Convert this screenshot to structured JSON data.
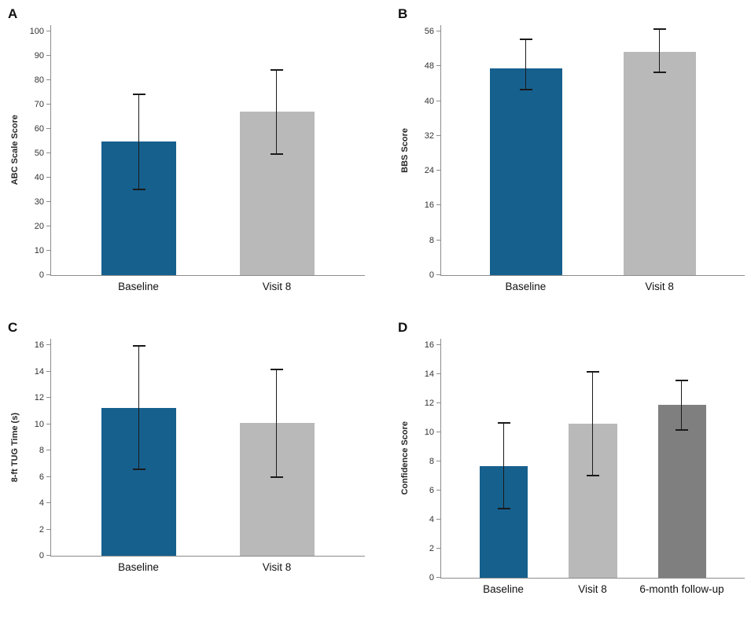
{
  "figure": {
    "description": "Four-panel bar chart figure with error bars comparing outcome measures at Baseline, Visit 8, and 6-month follow-up"
  },
  "colors": {
    "bar_blue": "#16608e",
    "bar_light_gray": "#b9b9b9",
    "bar_dark_gray": "#7f7f7f",
    "error_bar": "#1a1a1a",
    "axis_line": "#8c8c8c",
    "text": "#1a1a1a",
    "background": "#ffffff"
  },
  "chart_data": [
    {
      "type": "bar",
      "panel_label": "A",
      "categories": [
        "Baseline",
        "Visit 8"
      ],
      "values": [
        55,
        67
      ],
      "error_low": [
        35,
        49.5
      ],
      "error_high": [
        74.5,
        84.5
      ],
      "title": "",
      "xlabel": "",
      "ylabel": "ABC Scale Score",
      "ylim": [
        0,
        100
      ],
      "ytick_step": 10,
      "grid": false,
      "legend": false,
      "bar_colors": [
        "#16608e",
        "#b9b9b9"
      ]
    },
    {
      "type": "bar",
      "panel_label": "B",
      "categories": [
        "Baseline",
        "Visit 8"
      ],
      "values": [
        47.5,
        51.3
      ],
      "error_low": [
        42.4,
        46.4
      ],
      "error_high": [
        54.4,
        56.8
      ],
      "title": "",
      "xlabel": "",
      "ylabel": "BBS Score",
      "ylim": [
        0,
        56
      ],
      "ytick_step": 8,
      "grid": false,
      "legend": false,
      "bar_colors": [
        "#16608e",
        "#b9b9b9"
      ]
    },
    {
      "type": "bar",
      "panel_label": "C",
      "categories": [
        "Baseline",
        "Visit 8"
      ],
      "values": [
        11.2,
        10.1
      ],
      "error_low": [
        6.5,
        5.9
      ],
      "error_high": [
        16.0,
        14.2
      ],
      "title": "",
      "xlabel": "",
      "ylabel": "8-ft TUG Time (s)",
      "ylim": [
        0,
        16
      ],
      "ytick_step": 2,
      "grid": false,
      "legend": false,
      "bar_colors": [
        "#16608e",
        "#b9b9b9"
      ]
    },
    {
      "type": "bar",
      "panel_label": "D",
      "categories": [
        "Baseline",
        "Visit 8",
        "6-month follow-up"
      ],
      "values": [
        7.7,
        10.6,
        11.9
      ],
      "error_low": [
        4.7,
        7.0,
        10.1
      ],
      "error_high": [
        10.7,
        14.2,
        13.6
      ],
      "title": "",
      "xlabel": "",
      "ylabel": "Confidence Score",
      "ylim": [
        0,
        16
      ],
      "ytick_step": 2,
      "grid": false,
      "legend": false,
      "bar_colors": [
        "#16608e",
        "#b9b9b9",
        "#7f7f7f"
      ]
    }
  ]
}
